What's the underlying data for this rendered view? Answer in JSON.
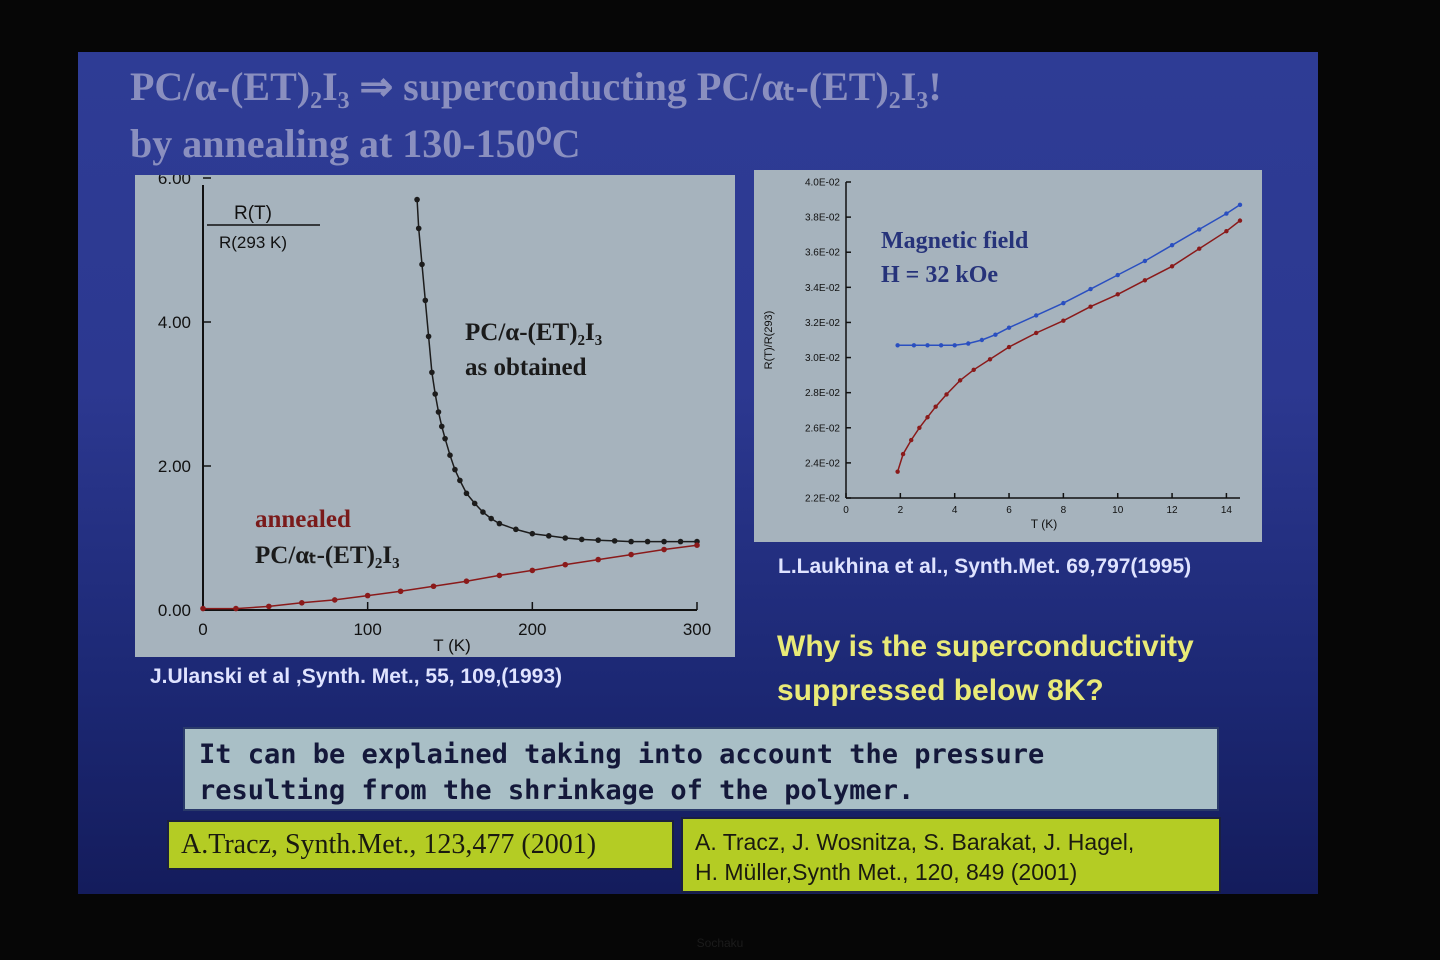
{
  "slide": {
    "title_line1": "PC/α-(ET)₂I₃ ⇒ superconducting PC/αₜ-(ET)₂I₃!",
    "title_line2": "by annealing at 130-150⁰C",
    "citation_left": "J.Ulanski et al ,Synth. Met., 55, 109,(1993)",
    "citation_right": "L.Laukhina et al., Synth.Met. 69,797(1995)",
    "question_line1": "Why is the superconductivity",
    "question_line2": "suppressed below 8K?",
    "explanation_line1": "It can be explained taking into account the pressure",
    "explanation_line2": "resulting from the shrinkage of the polymer.",
    "reference1": "A.Tracz, Synth.Met., 123,477 (2001)",
    "reference2_line1": "A. Tracz, J. Wosnitza,  S. Barakat, J. Hagel,",
    "reference2_line2": "H. Müller,Synth Met., 120, 849 (2001)",
    "footer": "Sochaku"
  },
  "colors": {
    "title": "#8a8fbf",
    "panel": "#a6b3bd",
    "curve_dark": "#1c1c1c",
    "curve_red": "#8a1a1a",
    "curve_blue": "#2a4fc0",
    "question": "#e9ea77",
    "reference_box": "#b4cc24"
  },
  "chart_data": [
    {
      "type": "scatter",
      "ylabel_num": "R(T)",
      "ylabel_den": "R(293 K)",
      "xlabel": "T  (K)",
      "xlim": [
        0,
        300
      ],
      "ylim": [
        0,
        6
      ],
      "xticks": [
        0,
        100,
        200,
        300
      ],
      "xtick_labels": [
        "0",
        "100",
        "200",
        "300"
      ],
      "yticks": [
        0,
        2,
        4,
        6
      ],
      "ytick_labels": [
        "0.00",
        "2.00",
        "4.00",
        "6.00"
      ],
      "grid": false,
      "series": [
        {
          "label_line1": "PC/α-(ET)₂I₃",
          "label_line2": "as obtained",
          "color": "#1c1c1c",
          "x": [
            130,
            131,
            133,
            135,
            137,
            139,
            141,
            143,
            145,
            147,
            150,
            153,
            156,
            160,
            165,
            170,
            175,
            180,
            190,
            200,
            210,
            220,
            230,
            240,
            250,
            260,
            270,
            280,
            290,
            300
          ],
          "y": [
            5.7,
            5.3,
            4.8,
            4.3,
            3.8,
            3.3,
            3.0,
            2.75,
            2.55,
            2.38,
            2.15,
            1.95,
            1.8,
            1.62,
            1.48,
            1.36,
            1.27,
            1.2,
            1.12,
            1.06,
            1.03,
            1.0,
            0.98,
            0.97,
            0.96,
            0.95,
            0.95,
            0.95,
            0.95,
            0.95
          ]
        },
        {
          "label_line1": "annealed",
          "label_line2": "PC/αₜ-(ET)₂I₃",
          "color": "#8a1a1a",
          "x": [
            0,
            20,
            40,
            60,
            80,
            100,
            120,
            140,
            160,
            180,
            200,
            220,
            240,
            260,
            280,
            300
          ],
          "y": [
            0.02,
            0.02,
            0.05,
            0.1,
            0.14,
            0.2,
            0.26,
            0.33,
            0.4,
            0.48,
            0.55,
            0.63,
            0.7,
            0.77,
            0.84,
            0.9
          ]
        }
      ]
    },
    {
      "type": "scatter",
      "annotation_line1": "Magnetic field",
      "annotation_line2": "H = 32 kOe",
      "ylabel": "R(T)/R(293)",
      "xlabel": "T (K)",
      "xlim": [
        0,
        14.5
      ],
      "ylim": [
        0.022,
        0.04
      ],
      "xticks": [
        0,
        2,
        4,
        6,
        8,
        10,
        12,
        14
      ],
      "xtick_labels": [
        "0",
        "2",
        "4",
        "6",
        "8",
        "10",
        "12",
        "14"
      ],
      "yticks": [
        0.022,
        0.024,
        0.026,
        0.028,
        0.03,
        0.032,
        0.034,
        0.036,
        0.038,
        0.04
      ],
      "ytick_labels": [
        "2.2E-02",
        "2.4E-02",
        "2.6E-02",
        "2.8E-02",
        "3.0E-02",
        "3.2E-02",
        "3.4E-02",
        "3.6E-02",
        "3.8E-02",
        "4.0E-02"
      ],
      "grid": false,
      "series": [
        {
          "color": "#2a4fc0",
          "x": [
            1.9,
            2.5,
            3,
            3.5,
            4,
            4.5,
            5,
            5.5,
            6,
            7,
            8,
            9,
            10,
            11,
            12,
            13,
            14,
            14.5
          ],
          "y": [
            0.0307,
            0.0307,
            0.0307,
            0.0307,
            0.0307,
            0.0308,
            0.031,
            0.0313,
            0.0317,
            0.0324,
            0.0331,
            0.0339,
            0.0347,
            0.0355,
            0.0364,
            0.0373,
            0.0382,
            0.0387
          ]
        },
        {
          "color": "#8a1a1a",
          "x": [
            1.9,
            2.1,
            2.4,
            2.7,
            3,
            3.3,
            3.7,
            4.2,
            4.7,
            5.3,
            6,
            7,
            8,
            9,
            10,
            11,
            12,
            13,
            14,
            14.5
          ],
          "y": [
            0.0235,
            0.0245,
            0.0253,
            0.026,
            0.0266,
            0.0272,
            0.0279,
            0.0287,
            0.0293,
            0.0299,
            0.0306,
            0.0314,
            0.0321,
            0.0329,
            0.0336,
            0.0344,
            0.0352,
            0.0362,
            0.0372,
            0.0378
          ]
        }
      ]
    }
  ]
}
